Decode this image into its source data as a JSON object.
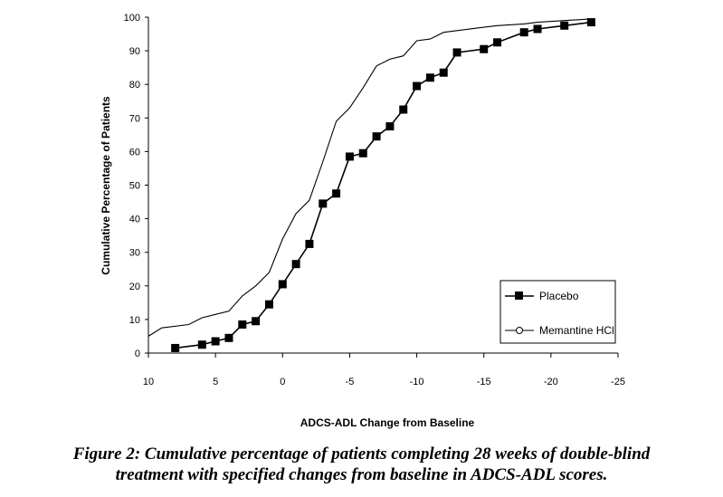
{
  "chart_data": {
    "type": "line",
    "title": "",
    "xlabel": "ADCS-ADL Change from Baseline",
    "ylabel": "Cumulative Percentage of Patients",
    "xlim": [
      10,
      -25
    ],
    "ylim": [
      0,
      100
    ],
    "x_ticks": [
      10,
      5,
      0,
      -5,
      -10,
      -15,
      -20,
      -25
    ],
    "y_ticks": [
      0,
      10,
      20,
      30,
      40,
      50,
      60,
      70,
      80,
      90,
      100
    ],
    "grid": false,
    "legend_position": "bottom-right",
    "series": [
      {
        "name": "Placebo",
        "marker": "square",
        "color": "#000000",
        "x": [
          8,
          6,
          5,
          4,
          3,
          2,
          1,
          0,
          -1,
          -2,
          -3,
          -4,
          -5,
          -6,
          -7,
          -8,
          -9,
          -10,
          -11,
          -12,
          -13,
          -15,
          -16,
          -18,
          -19,
          -21,
          -23
        ],
        "y": [
          1.5,
          2.5,
          3.5,
          4.5,
          8.5,
          9.5,
          14.5,
          20.5,
          26.5,
          32.5,
          44.5,
          47.5,
          58.5,
          59.5,
          64.5,
          67.5,
          72.5,
          79.5,
          82,
          83.5,
          89.5,
          90.5,
          92.5,
          95.5,
          96.5,
          97.5,
          98.5
        ]
      },
      {
        "name": "Memantine HCl",
        "marker": "circle",
        "color": "#000000",
        "x": [
          10,
          9,
          7,
          6,
          5,
          4,
          3,
          2,
          1,
          0,
          -1,
          -2,
          -3,
          -4,
          -5,
          -6,
          -7,
          -8,
          -9,
          -10,
          -11,
          -12,
          -13,
          -15,
          -16,
          -18,
          -19,
          -21,
          -23
        ],
        "y": [
          5,
          7.5,
          8.5,
          10.5,
          11.5,
          12.5,
          17,
          20,
          24,
          34,
          41.5,
          45.5,
          57,
          69,
          73,
          79,
          85.5,
          87.5,
          88.5,
          93,
          93.5,
          95.5,
          96,
          97,
          97.5,
          98,
          98.5,
          99,
          99.5
        ]
      }
    ]
  },
  "caption": {
    "line1": "Figure 2: Cumulative percentage of patients completing 28 weeks of double-blind",
    "line2": "treatment with specified changes from baseline in ADCS-ADL scores."
  }
}
